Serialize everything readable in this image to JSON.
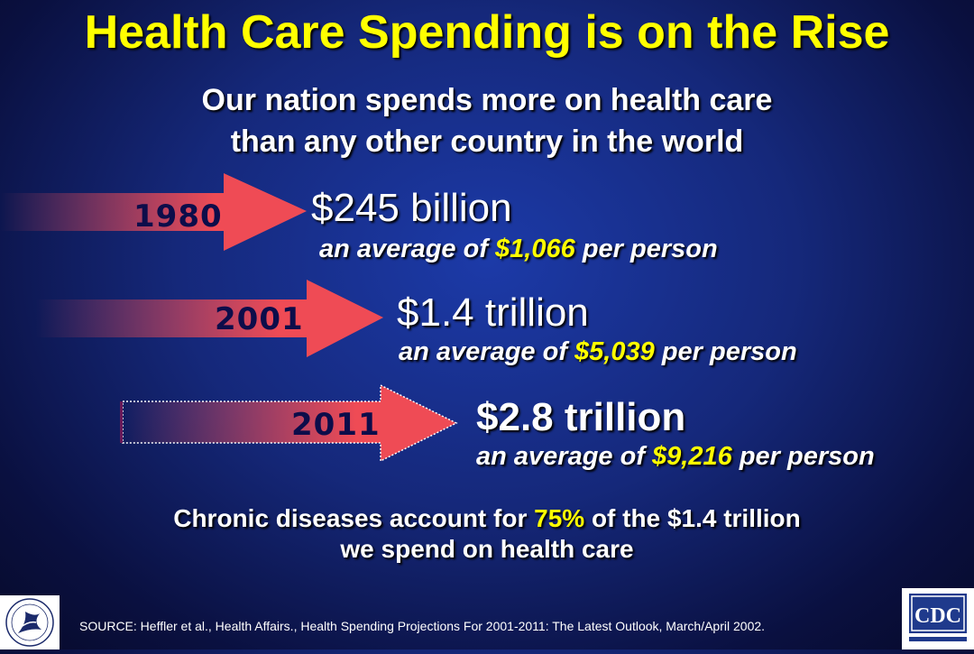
{
  "slide": {
    "title": "Health Care Spending is on the Rise",
    "subtitle_line1": "Our nation spends more on health care",
    "subtitle_line2": "than any other country in the world"
  },
  "items": [
    {
      "year": "1980",
      "amount": "$245 billion",
      "avg_prefix": "an average of",
      "avg_value": "$1,066",
      "avg_suffix": "per person"
    },
    {
      "year": "2001",
      "amount": "$1.4 trillion",
      "avg_prefix": "an average of",
      "avg_value": "$5,039",
      "avg_suffix": "per person"
    },
    {
      "year": "2011",
      "amount": "$2.8 trillion",
      "avg_prefix": "an average of",
      "avg_value": "$9,216",
      "avg_suffix": "per person"
    }
  ],
  "chronic": {
    "prefix": "Chronic diseases account for",
    "percent": "75%",
    "suffix": "of the $1.4 trillion",
    "line2": "we spend on health care"
  },
  "source": "SOURCE: Heffler et al., Health Affairs., Health Spending Projections For 2001-2011: The Latest Outlook, March/April 2002.",
  "logos": {
    "right_text": "CDC"
  },
  "colors": {
    "background": "#15287a",
    "title": "#ffff00",
    "highlight": "#ffff00",
    "arrow_head": "#ef4b55"
  }
}
